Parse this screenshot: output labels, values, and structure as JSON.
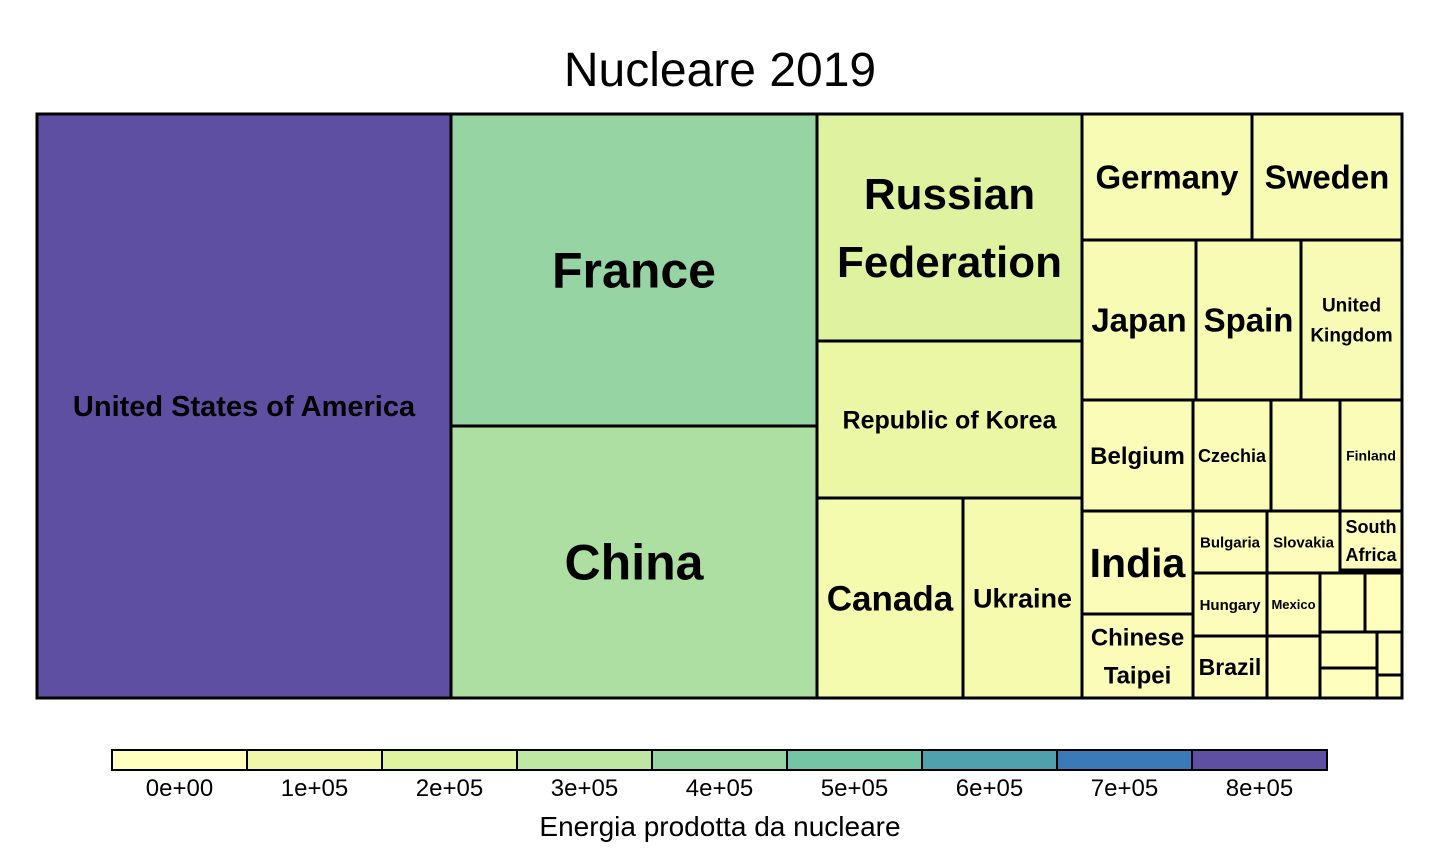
{
  "chart_data": {
    "type": "treemap",
    "title": "Nucleare 2019",
    "value_label": "Energia prodotta da nucleare",
    "color_scale": {
      "ticks": [
        "0e+00",
        "1e+05",
        "2e+05",
        "3e+05",
        "4e+05",
        "5e+05",
        "6e+05",
        "7e+05",
        "8e+05"
      ],
      "colors": [
        "#ffffbf",
        "#f0f7aa",
        "#e0f3a0",
        "#bfe6a3",
        "#99d5a4",
        "#73c5a5",
        "#4fa1ae",
        "#3a7ab8",
        "#5e4fa2"
      ]
    },
    "cells": [
      {
        "name": "United States of America",
        "value": 843000,
        "color": "#5e4fa2",
        "label_color": "#ffffff"
      },
      {
        "name": "France",
        "value": 400000,
        "color": "#96d4a4"
      },
      {
        "name": "China",
        "value": 330000,
        "color": "#addea2"
      },
      {
        "name": "Russian Federation",
        "value": 200000,
        "color": "#def2a0"
      },
      {
        "name": "Republic of Korea",
        "value": 140000,
        "color": "#ebf7a4"
      },
      {
        "name": "Canada",
        "value": 95000,
        "color": "#f4faae"
      },
      {
        "name": "Ukraine",
        "value": 80000,
        "color": "#f5faaf"
      },
      {
        "name": "Germany",
        "value": 72000,
        "color": "#f7fbb3"
      },
      {
        "name": "Sweden",
        "value": 65000,
        "color": "#f7fbb3"
      },
      {
        "name": "Japan",
        "value": 63000,
        "color": "#f8fbb4"
      },
      {
        "name": "Spain",
        "value": 56000,
        "color": "#f8fbb4"
      },
      {
        "name": "United Kingdom",
        "value": 56000,
        "color": "#f8fbb5"
      },
      {
        "name": "Belgium",
        "value": 43000,
        "color": "#fafcb7"
      },
      {
        "name": "Czechia",
        "value": 30000,
        "color": "#fbfcb8"
      },
      {
        "name": "",
        "value": 25000,
        "color": "#fbfcb9"
      },
      {
        "name": "Finland",
        "value": 23000,
        "color": "#fcfcb9"
      },
      {
        "name": "India",
        "value": 43000,
        "color": "#fafcb7"
      },
      {
        "name": "Chinese Taipei",
        "value": 32000,
        "color": "#fafcb8"
      },
      {
        "name": "Bulgaria",
        "value": 16000,
        "color": "#fdfdbb"
      },
      {
        "name": "Slovakia",
        "value": 15000,
        "color": "#fdfdbb"
      },
      {
        "name": "South Africa",
        "value": 13000,
        "color": "#fdfdbc"
      },
      {
        "name": "Hungary",
        "value": 16000,
        "color": "#fdfdbb"
      },
      {
        "name": "Mexico",
        "value": 11000,
        "color": "#fdfdbc"
      },
      {
        "name": "Brazil",
        "value": 16000,
        "color": "#fdfdbb"
      },
      {
        "name": "",
        "value": 7000,
        "color": "#fefebd"
      },
      {
        "name": "",
        "value": 7000,
        "color": "#fefebd"
      },
      {
        "name": "",
        "value": 6000,
        "color": "#fefebd"
      },
      {
        "name": "",
        "value": 5000,
        "color": "#fefebe"
      },
      {
        "name": "",
        "value": 5000,
        "color": "#fefebe"
      },
      {
        "name": "",
        "value": 3000,
        "color": "#fefebe"
      },
      {
        "name": "",
        "value": 2000,
        "color": "#fefebe"
      }
    ]
  }
}
